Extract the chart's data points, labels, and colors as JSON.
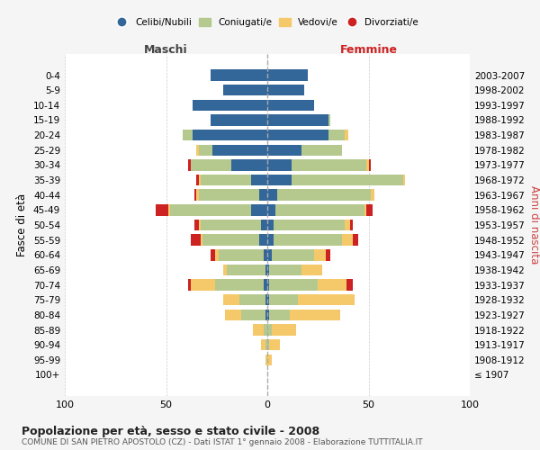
{
  "age_groups": [
    "100+",
    "95-99",
    "90-94",
    "85-89",
    "80-84",
    "75-79",
    "70-74",
    "65-69",
    "60-64",
    "55-59",
    "50-54",
    "45-49",
    "40-44",
    "35-39",
    "30-34",
    "25-29",
    "20-24",
    "15-19",
    "10-14",
    "5-9",
    "0-4"
  ],
  "birth_years": [
    "≤ 1907",
    "1908-1912",
    "1913-1917",
    "1918-1922",
    "1923-1927",
    "1928-1932",
    "1933-1937",
    "1938-1942",
    "1943-1947",
    "1948-1952",
    "1953-1957",
    "1958-1962",
    "1963-1967",
    "1968-1972",
    "1973-1977",
    "1978-1982",
    "1983-1987",
    "1988-1992",
    "1993-1997",
    "1998-2002",
    "2003-2007"
  ],
  "maschi": {
    "celibi": [
      0,
      0,
      0,
      0,
      1,
      1,
      2,
      1,
      2,
      4,
      3,
      8,
      4,
      8,
      18,
      27,
      37,
      28,
      37,
      22,
      28
    ],
    "coniugati": [
      0,
      0,
      1,
      2,
      12,
      13,
      24,
      19,
      22,
      28,
      30,
      40,
      30,
      25,
      20,
      7,
      5,
      0,
      0,
      0,
      0
    ],
    "vedovi": [
      0,
      1,
      2,
      5,
      8,
      8,
      12,
      2,
      2,
      1,
      1,
      1,
      1,
      1,
      0,
      1,
      0,
      0,
      0,
      0,
      0
    ],
    "divorziati": [
      0,
      0,
      0,
      0,
      0,
      0,
      1,
      0,
      2,
      5,
      2,
      6,
      1,
      1,
      1,
      0,
      0,
      0,
      0,
      0,
      0
    ]
  },
  "femmine": {
    "nubili": [
      0,
      0,
      0,
      0,
      1,
      1,
      1,
      1,
      2,
      3,
      3,
      4,
      5,
      12,
      12,
      17,
      30,
      30,
      23,
      18,
      20
    ],
    "coniugate": [
      0,
      0,
      1,
      2,
      10,
      14,
      24,
      16,
      21,
      34,
      35,
      44,
      46,
      55,
      37,
      20,
      8,
      1,
      0,
      0,
      0
    ],
    "vedove": [
      0,
      2,
      5,
      12,
      25,
      28,
      14,
      10,
      6,
      5,
      3,
      1,
      2,
      1,
      1,
      0,
      2,
      0,
      0,
      0,
      0
    ],
    "divorziate": [
      0,
      0,
      0,
      0,
      0,
      0,
      3,
      0,
      2,
      3,
      1,
      3,
      0,
      0,
      1,
      0,
      0,
      0,
      0,
      0,
      0
    ]
  },
  "colors": {
    "celibi_nubili": "#336699",
    "coniugati_e": "#b5c98e",
    "vedovi_e": "#f5c96a",
    "divorziati_e": "#cc2222"
  },
  "xlim": 100,
  "title_main": "Popolazione per età, sesso e stato civile - 2008",
  "title_sub": "COMUNE DI SAN PIETRO APOSTOLO (CZ) - Dati ISTAT 1° gennaio 2008 - Elaborazione TUTTITALIA.IT",
  "ylabel_left": "Fasce di età",
  "ylabel_right": "Anni di nascita",
  "xlabel_left": "Maschi",
  "xlabel_right": "Femmine",
  "bg_color": "#f5f5f5",
  "plot_bg": "#ffffff"
}
